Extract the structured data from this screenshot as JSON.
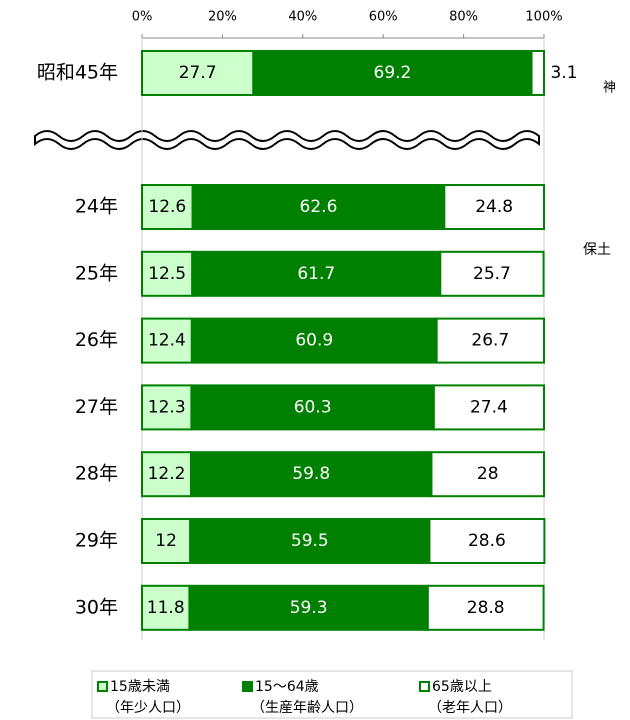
{
  "chart_data": {
    "type": "stacked-bar-horizontal",
    "categories": [
      "昭和45年",
      "24年",
      "25年",
      "26年",
      "27年",
      "28年",
      "29年",
      "30年"
    ],
    "series": [
      {
        "name": "15歳未満",
        "note": "（年少人口）",
        "color": "#ccffcc",
        "values": [
          27.7,
          12.6,
          12.5,
          12.4,
          12.3,
          12.2,
          12,
          11.8
        ]
      },
      {
        "name": "15～64歳",
        "note": "（生産年齢人口）",
        "color": "#008000",
        "values": [
          69.2,
          62.6,
          61.7,
          60.9,
          60.3,
          59.8,
          59.5,
          59.3
        ]
      },
      {
        "name": "65歳以上",
        "note": "（老年人口）",
        "color": "#ffffff",
        "values": [
          3.1,
          24.8,
          25.7,
          26.7,
          27.4,
          28,
          28.6,
          28.8
        ]
      }
    ],
    "xlim": [
      0,
      100
    ],
    "xticks": [
      {
        "value": 0,
        "label": "0%"
      },
      {
        "value": 20,
        "label": "20%"
      },
      {
        "value": 40,
        "label": "40%"
      },
      {
        "value": 60,
        "label": "60%"
      },
      {
        "value": 80,
        "label": "80%"
      },
      {
        "value": 100,
        "label": "100%"
      }
    ],
    "annotations": [
      "神",
      "保土"
    ]
  }
}
